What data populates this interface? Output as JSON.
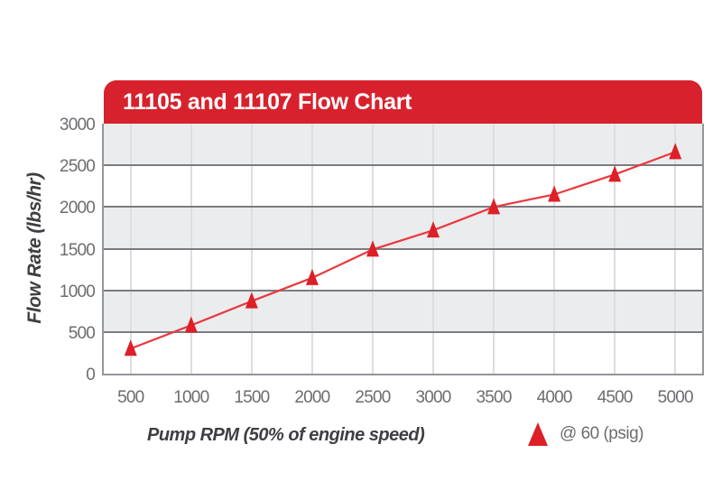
{
  "banner": {
    "title": "11105 and 11107 Flow Chart",
    "bg_color": "#d7222d",
    "text_color": "#ffffff"
  },
  "chart_data": {
    "type": "line",
    "title": "11105 and 11107 Flow Chart",
    "xlabel": "Pump RPM (50% of engine speed)",
    "ylabel": "Flow Rate (lbs/hr)",
    "x": [
      500,
      1000,
      1500,
      2000,
      2500,
      3000,
      3500,
      4000,
      4500,
      5000
    ],
    "series": [
      {
        "name": "@ 60 (psig)",
        "marker": "triangle",
        "color": "#dd1f27",
        "line_color": "#e8393f",
        "values": [
          300,
          580,
          870,
          1150,
          1490,
          1720,
          2000,
          2150,
          2390,
          2660
        ]
      }
    ],
    "xticks": [
      "500",
      "1000",
      "1500",
      "2000",
      "2500",
      "3000",
      "3500",
      "4000",
      "4500",
      "5000"
    ],
    "yticks": [
      "0",
      "500",
      "1000",
      "1500",
      "2000",
      "2500",
      "3000"
    ],
    "ytick_values": [
      0,
      500,
      1000,
      1500,
      2000,
      2500,
      3000
    ],
    "ylim": [
      0,
      3000
    ],
    "xlim": [
      278,
      5222
    ],
    "grid": "horizontal-major",
    "legend_position": "bottom-right",
    "band_colors": [
      "#ebecee",
      "#ffffff"
    ],
    "hgrid_color": "#7b7c80",
    "vgrid_color": "#dddee1",
    "tick_text_color": "#6c6d70"
  },
  "legend": {
    "label": "@ 60 (psig)",
    "marker_color": "#dd1f27"
  }
}
